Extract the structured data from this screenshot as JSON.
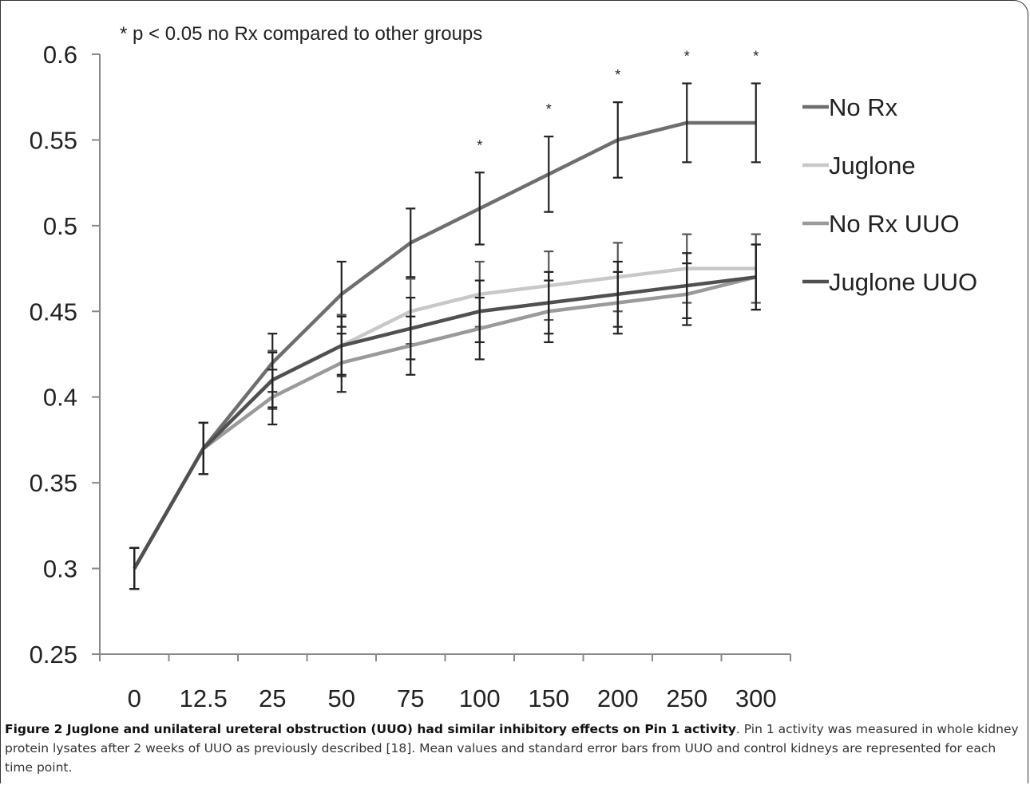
{
  "chart_data": {
    "type": "line",
    "title": "",
    "annotation": "* p < 0.05 no Rx compared to other groups",
    "significance_marker": "*",
    "significant_categories": [
      "100",
      "150",
      "200",
      "250",
      "300"
    ],
    "xlabel": "",
    "ylabel": "",
    "categories": [
      "0",
      "12.5",
      "25",
      "50",
      "75",
      "100",
      "150",
      "200",
      "250",
      "300"
    ],
    "ylim": [
      0.25,
      0.6
    ],
    "yticks": [
      "0.25",
      "0.3",
      "0.35",
      "0.4",
      "0.45",
      "0.5",
      "0.55",
      "0.6"
    ],
    "legend_position": "right",
    "series": [
      {
        "name": "No Rx",
        "color": "#6e6e6e",
        "values": [
          0.3,
          0.37,
          0.42,
          0.46,
          0.49,
          0.51,
          0.53,
          0.55,
          0.56,
          0.56
        ],
        "errors": [
          0.012,
          0.015,
          0.017,
          0.019,
          0.02,
          0.021,
          0.022,
          0.022,
          0.023,
          0.023
        ]
      },
      {
        "name": "Juglone",
        "color": "#c8c8c8",
        "values": [
          0.3,
          0.37,
          0.41,
          0.43,
          0.45,
          0.46,
          0.465,
          0.47,
          0.475,
          0.475
        ],
        "errors": [
          0.012,
          0.015,
          0.017,
          0.018,
          0.019,
          0.019,
          0.02,
          0.02,
          0.02,
          0.02
        ]
      },
      {
        "name": "No Rx UUO",
        "color": "#9a9a9a",
        "values": [
          0.3,
          0.37,
          0.4,
          0.42,
          0.43,
          0.44,
          0.45,
          0.455,
          0.46,
          0.47
        ],
        "errors": [
          0.012,
          0.015,
          0.016,
          0.017,
          0.017,
          0.018,
          0.018,
          0.018,
          0.018,
          0.019
        ]
      },
      {
        "name": "Juglone UUO",
        "color": "#505050",
        "values": [
          0.3,
          0.37,
          0.41,
          0.43,
          0.44,
          0.45,
          0.455,
          0.46,
          0.465,
          0.47
        ],
        "errors": [
          0.012,
          0.015,
          0.016,
          0.017,
          0.018,
          0.018,
          0.018,
          0.019,
          0.019,
          0.019
        ]
      }
    ]
  },
  "caption": {
    "bold": "Figure 2 Juglone and unilateral ureteral obstruction (UUO) had similar inhibitory effects on Pin 1 activity",
    "text": ". Pin 1 activity was measured in whole kidney protein lysates after 2 weeks of UUO as previously described [18]. Mean values and standard error bars from UUO and control kidneys are represented for each time point."
  }
}
